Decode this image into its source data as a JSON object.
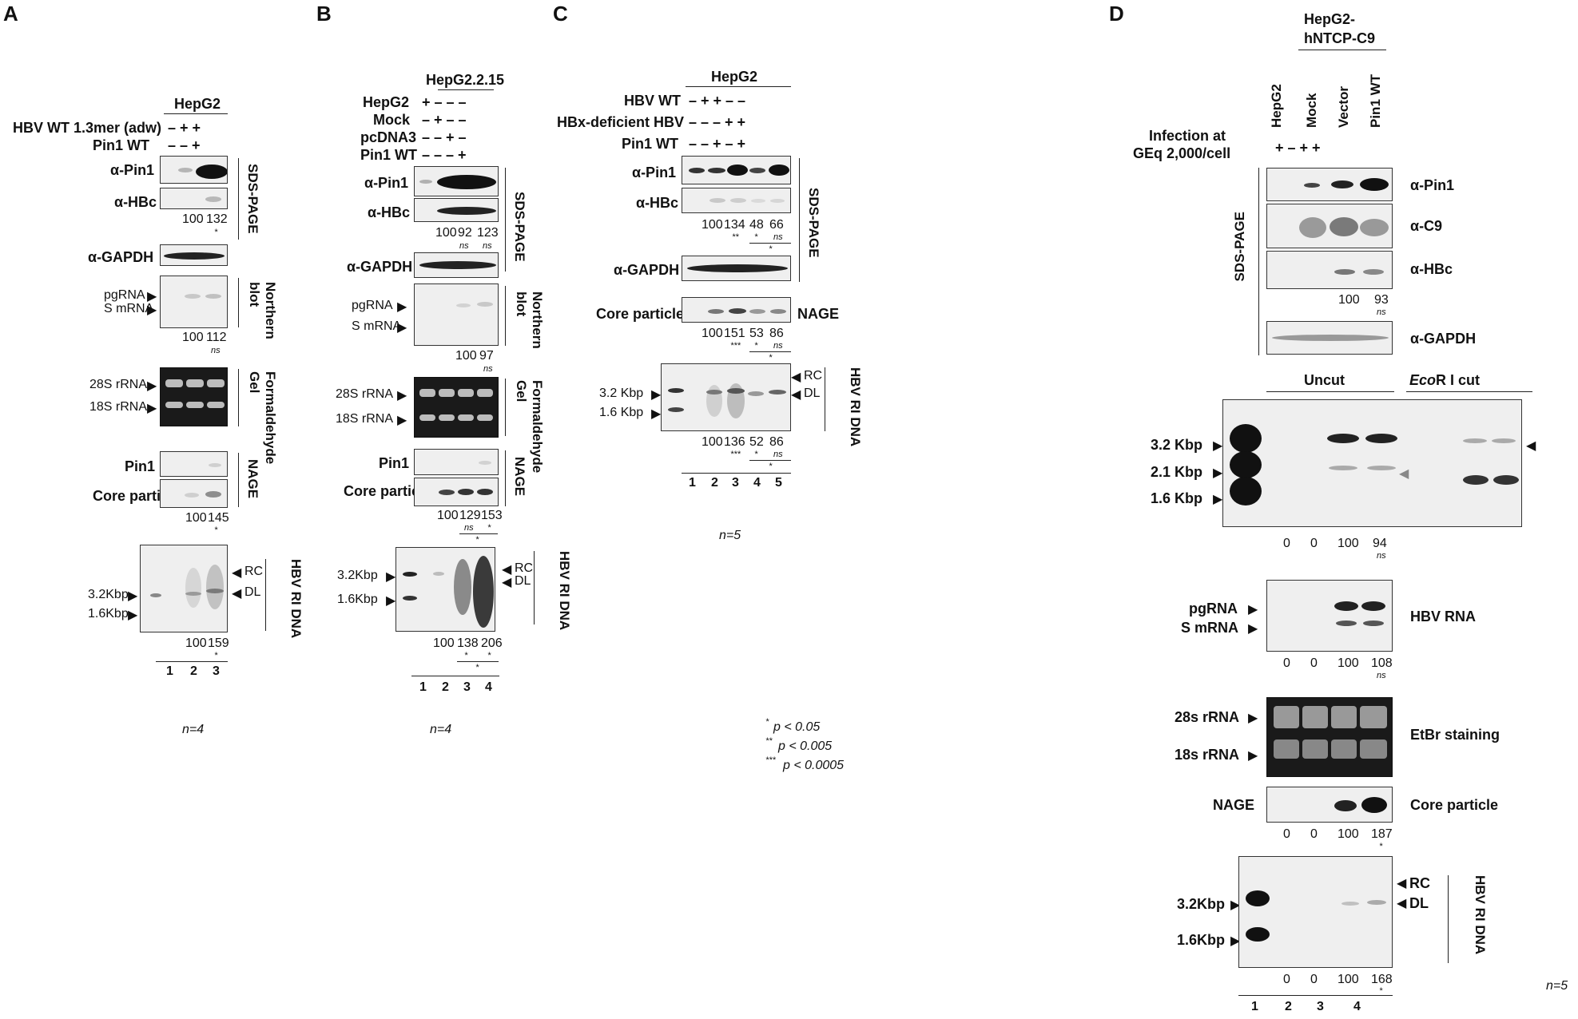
{
  "panels": {
    "A": {
      "letter": "A",
      "cell_line": "HepG2",
      "conditions": [
        {
          "label": "HBV WT 1.3mer (adw)",
          "signs": "–   +   +"
        },
        {
          "label": "Pin1 WT",
          "signs": "–   –   +"
        }
      ],
      "blots": {
        "pin1": "α-Pin1",
        "hbc": "α-HBc",
        "gapdh": "α-GAPDH",
        "pgrna": "pgRNA",
        "smrna": "S mRNA",
        "r28s": "28S rRNA",
        "r18s": "18S rRNA",
        "nage_pin1": "Pin1",
        "core": "Core particle",
        "k32": "3.2Kbp",
        "k16": "1.6Kbp",
        "rc": "RC",
        "dl": "DL"
      },
      "sections": {
        "sds": "SDS-PAGE",
        "northern": "Northern blot",
        "formal": "Formaldehyde Gel",
        "nage": "NAGE",
        "ri": "HBV RI DNA"
      },
      "quant": {
        "hbc": [
          "100",
          "132"
        ],
        "northern": [
          "100",
          "112"
        ],
        "core": [
          "100",
          "145"
        ],
        "ri": [
          "100",
          "159"
        ]
      },
      "lanes": [
        "1",
        "2",
        "3"
      ],
      "n": "n=4"
    },
    "B": {
      "letter": "B",
      "cell_line": "HepG2.2.15",
      "conditions": [
        {
          "label": "HepG2",
          "signs": "+  –  –  –"
        },
        {
          "label": "Mock",
          "signs": "–  +  –  –"
        },
        {
          "label": "pcDNA3",
          "signs": "–  –  +  –"
        },
        {
          "label": "Pin1 WT",
          "signs": "–  –  –  +"
        }
      ],
      "blots": {
        "pin1": "α-Pin1",
        "hbc": "α-HBc",
        "gapdh": "α-GAPDH",
        "pgrna": "pgRNA",
        "smrna": "S mRNA",
        "r28s": "28S rRNA",
        "r18s": "18S rRNA",
        "nage_pin1": "Pin1",
        "core": "Core particle",
        "k32": "3.2Kbp",
        "k16": "1.6Kbp",
        "rc": "RC",
        "dl": "DL"
      },
      "sections": {
        "sds": "SDS-PAGE",
        "northern": "Northern blot",
        "formal": "Formaldehyde Gel",
        "nage": "NAGE",
        "ri": "HBV RI DNA"
      },
      "quant": {
        "hbc": [
          "100",
          "92",
          "123"
        ],
        "northern": [
          "100",
          "97"
        ],
        "core": [
          "100",
          "129",
          "153"
        ],
        "ri": [
          "100",
          "138",
          "206"
        ]
      },
      "lanes": [
        "1",
        "2",
        "3",
        "4"
      ],
      "n": "n=4"
    },
    "C": {
      "letter": "C",
      "cell_line": "HepG2",
      "conditions": [
        {
          "label": "HBV WT",
          "signs": "–  +  +  –  –"
        },
        {
          "label": "HBx-deficient HBV",
          "signs": "–  –  –  +  +"
        },
        {
          "label": "Pin1 WT",
          "signs": "–  –  +  –  +"
        }
      ],
      "blots": {
        "pin1": "α-Pin1",
        "hbc": "α-HBc",
        "gapdh": "α-GAPDH",
        "core": "Core particle",
        "k32": "3.2 Kbp",
        "k16": "1.6 Kbp",
        "rc": "RC",
        "dl": "DL"
      },
      "sections": {
        "sds": "SDS-PAGE",
        "nage": "NAGE",
        "ri": "HBV RI DNA"
      },
      "quant": {
        "hbc": [
          "100",
          "134",
          "48",
          "66"
        ],
        "core": [
          "100",
          "151",
          "53",
          "86"
        ],
        "ri": [
          "100",
          "136",
          "52",
          "86"
        ]
      },
      "lanes": [
        "1",
        "2",
        "3",
        "4",
        "5"
      ],
      "n": "n=5"
    },
    "D": {
      "letter": "D",
      "cell_line_line1": "HepG2-",
      "cell_line_line2": "hNTCP-C9",
      "column_headers": [
        "HepG2",
        "Mock",
        "Vector",
        "Pin1 WT"
      ],
      "infection_line1": "Infection at",
      "infection_line2": "GEq 2,000/cell",
      "infection_signs": "+   –   +   +",
      "blots": {
        "pin1": "α-Pin1",
        "c9": "α-C9",
        "hbc": "α-HBc",
        "gapdh": "α-GAPDH",
        "uncut": "Uncut",
        "ecor": "Eco",
        "ecor_rest": "R I cut",
        "k32": "3.2 Kbp",
        "k21": "2.1 Kbp",
        "k16": "1.6 Kbp",
        "pgrna": "pgRNA",
        "smrna": "S mRNA",
        "hbv_rna": "HBV RNA",
        "r28s": "28s rRNA",
        "r18s": "18s rRNA",
        "etbr": "EtBr staining",
        "nage": "NAGE",
        "core": "Core particle",
        "kb32": "3.2Kbp",
        "kb16": "1.6Kbp",
        "rc": "RC",
        "dl": "DL"
      },
      "sections": {
        "sds": "SDS-PAGE",
        "ri": "HBV RI DNA"
      },
      "quant": {
        "hbc": [
          "100",
          "93"
        ],
        "southern": [
          "0",
          "0",
          "100",
          "94"
        ],
        "rna": [
          "0",
          "0",
          "100",
          "108"
        ],
        "core": [
          "0",
          "0",
          "100",
          "187"
        ],
        "ri": [
          "0",
          "0",
          "100",
          "168"
        ]
      },
      "lanes": [
        "1",
        "2",
        "3",
        "4"
      ],
      "n": "n=5"
    }
  },
  "significance": {
    "ns": "ns",
    "star": "*",
    "legend": [
      {
        "mark": "*",
        "text": "p < 0.05"
      },
      {
        "mark": "**",
        "text": "p < 0.005"
      },
      {
        "mark": "***",
        "text": "p < 0.0005"
      }
    ]
  }
}
